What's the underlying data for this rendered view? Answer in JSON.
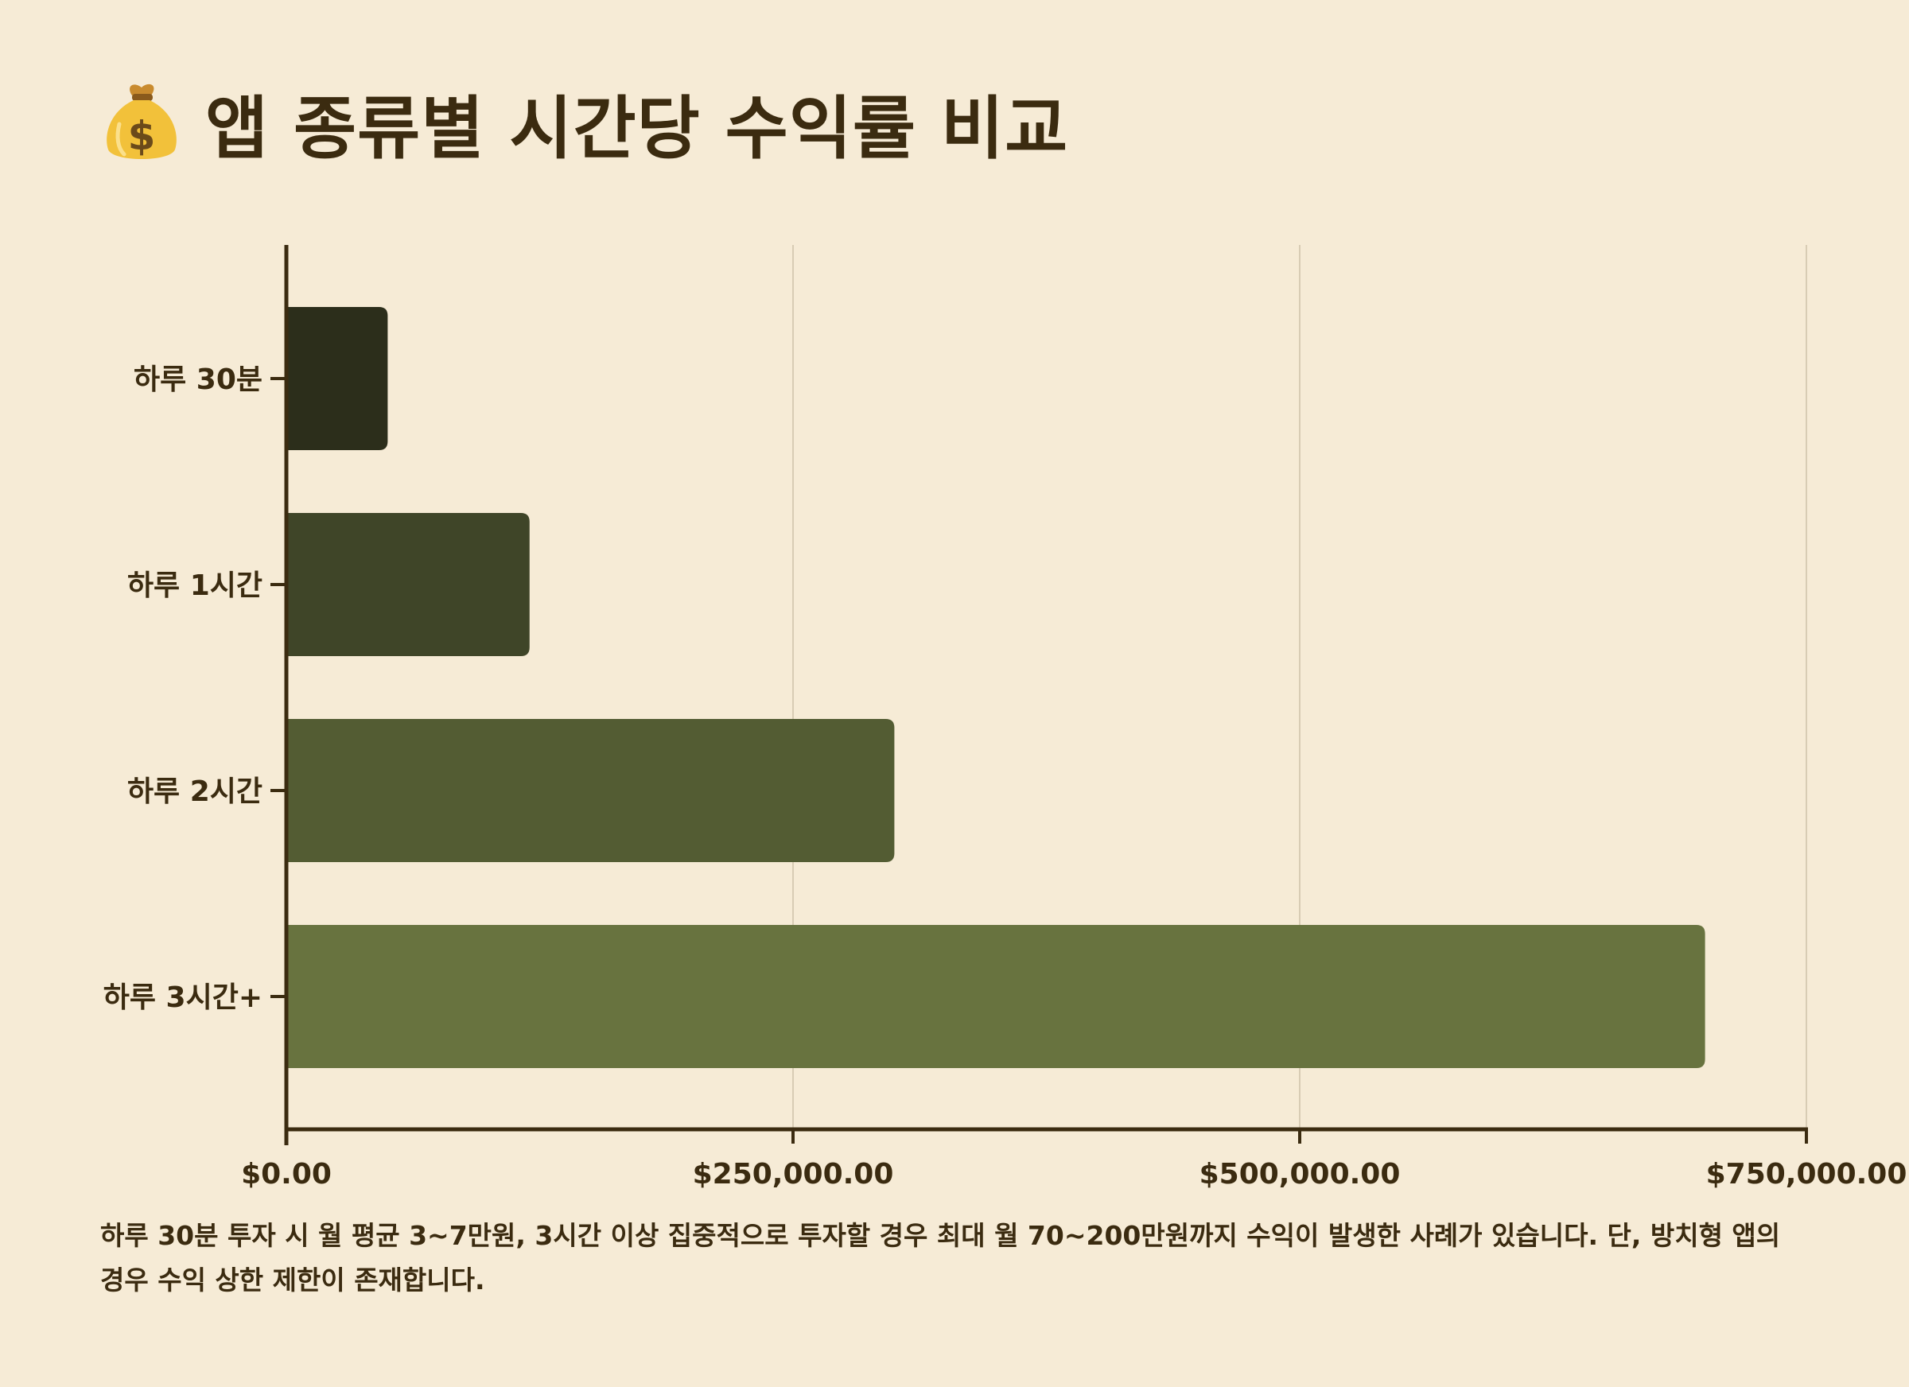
{
  "title": "앱 종류별 시간당 수익률 비교",
  "title_icon": "money-bag-icon",
  "colors": {
    "background": "#f6ebd6",
    "text": "#3b2b10",
    "axis": "#3b2b10",
    "grid": "#d8ccb4",
    "bars": [
      "#2c2e1b",
      "#3f4528",
      "#535c33",
      "#68733f"
    ]
  },
  "chart_data": {
    "type": "bar",
    "orientation": "horizontal",
    "categories": [
      "하루 30분",
      "하루 1시간",
      "하루 2시간",
      "하루 3시간+"
    ],
    "values": [
      50000,
      120000,
      300000,
      700000
    ],
    "xlim": [
      0,
      750000
    ],
    "x_ticks": [
      0,
      250000,
      500000,
      750000
    ],
    "x_tick_labels": [
      "$0.00",
      "$250,000.00",
      "$500,000.00",
      "$750,000.00"
    ],
    "grid": "vertical",
    "title": "앱 종류별 시간당 수익률 비교"
  },
  "caption": "하루 30분 투자 시 월 평균 3~7만원, 3시간 이상 집중적으로 투자할 경우 최대 월 70~200만원까지 수익이 발생한 사례가 있습니다. 단, 방치형 앱의 경우 수익 상한 제한이 존재합니다."
}
